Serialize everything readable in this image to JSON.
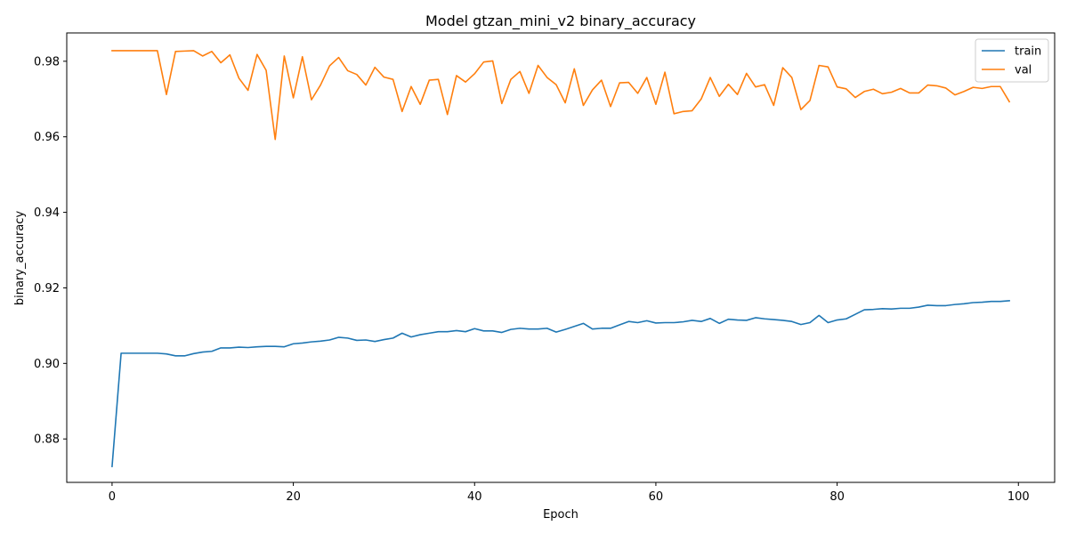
{
  "chart_data": {
    "type": "line",
    "title": "Model gtzan_mini_v2 binary_accuracy",
    "xlabel": "Epoch",
    "ylabel": "binary_accuracy",
    "xlim": [
      -5,
      104
    ],
    "ylim": [
      0.8685,
      0.9875
    ],
    "xticks": [
      0,
      20,
      40,
      60,
      80,
      100
    ],
    "xtick_labels": [
      "0",
      "20",
      "40",
      "60",
      "80",
      "100"
    ],
    "yticks": [
      0.88,
      0.9,
      0.92,
      0.94,
      0.96,
      0.98
    ],
    "ytick_labels": [
      "0.88",
      "0.90",
      "0.92",
      "0.94",
      "0.96",
      "0.98"
    ],
    "grid": false,
    "legend_position": "top-right",
    "series": [
      {
        "name": "train",
        "color": "#1f77b4",
        "values": [
          0.8727,
          0.9027,
          0.9027,
          0.9027,
          0.9027,
          0.9027,
          0.9025,
          0.902,
          0.902,
          0.9026,
          0.903,
          0.9032,
          0.9041,
          0.9041,
          0.9043,
          0.9042,
          0.9044,
          0.9045,
          0.9045,
          0.9044,
          0.9052,
          0.9054,
          0.9057,
          0.9059,
          0.9062,
          0.9069,
          0.9067,
          0.9061,
          0.9062,
          0.9058,
          0.9063,
          0.9067,
          0.908,
          0.907,
          0.9076,
          0.908,
          0.9084,
          0.9084,
          0.9087,
          0.9084,
          0.9092,
          0.9086,
          0.9086,
          0.9082,
          0.909,
          0.9093,
          0.9091,
          0.9091,
          0.9093,
          0.9083,
          0.909,
          0.9098,
          0.9106,
          0.9091,
          0.9093,
          0.9093,
          0.9102,
          0.9111,
          0.9108,
          0.9113,
          0.9107,
          0.9108,
          0.9108,
          0.911,
          0.9114,
          0.9111,
          0.9119,
          0.9106,
          0.9117,
          0.9115,
          0.9114,
          0.9121,
          0.9118,
          0.9116,
          0.9114,
          0.9111,
          0.9103,
          0.9108,
          0.9127,
          0.9108,
          0.9115,
          0.9118,
          0.913,
          0.9142,
          0.9143,
          0.9145,
          0.9144,
          0.9146,
          0.9146,
          0.9149,
          0.9154,
          0.9153,
          0.9153,
          0.9156,
          0.9158,
          0.9161,
          0.9162,
          0.9164,
          0.9164,
          0.9166
        ]
      },
      {
        "name": "val",
        "color": "#ff7f0e",
        "values": [
          0.9828,
          0.9828,
          0.9828,
          0.9828,
          0.9828,
          0.9828,
          0.9712,
          0.9826,
          0.9827,
          0.9828,
          0.9814,
          0.9826,
          0.9796,
          0.9817,
          0.9755,
          0.9723,
          0.9818,
          0.9776,
          0.9593,
          0.9814,
          0.9703,
          0.9812,
          0.9698,
          0.9737,
          0.9788,
          0.981,
          0.9775,
          0.9765,
          0.9737,
          0.9784,
          0.9758,
          0.9752,
          0.9667,
          0.9733,
          0.9686,
          0.975,
          0.9752,
          0.9659,
          0.9762,
          0.9745,
          0.9767,
          0.9798,
          0.9801,
          0.9688,
          0.9752,
          0.9773,
          0.9715,
          0.9789,
          0.9757,
          0.9738,
          0.969,
          0.978,
          0.9683,
          0.9724,
          0.975,
          0.968,
          0.9743,
          0.9744,
          0.9715,
          0.9757,
          0.9686,
          0.9771,
          0.9661,
          0.9667,
          0.9669,
          0.97,
          0.9757,
          0.9707,
          0.9739,
          0.9712,
          0.9768,
          0.9732,
          0.9738,
          0.9683,
          0.9783,
          0.9757,
          0.9672,
          0.9696,
          0.9789,
          0.9785,
          0.9732,
          0.9727,
          0.9704,
          0.972,
          0.9726,
          0.9714,
          0.9718,
          0.9728,
          0.9716,
          0.9716,
          0.9737,
          0.9735,
          0.9729,
          0.9711,
          0.972,
          0.9731,
          0.9728,
          0.9733,
          0.9733,
          0.9693
        ]
      }
    ]
  }
}
